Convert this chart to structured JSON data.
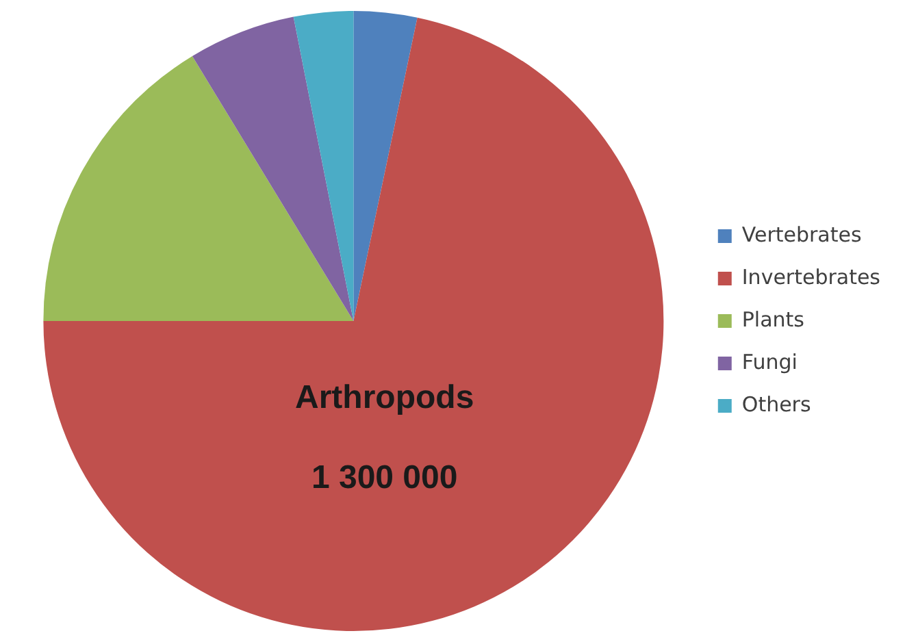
{
  "chart_data": {
    "type": "pie",
    "categories": [
      "Vertebrates",
      "Invertebrates",
      "Plants",
      "Fungi",
      "Others"
    ],
    "values": [
      3.3,
      71.7,
      16.3,
      5.6,
      3.1
    ],
    "colors": [
      "#4f81bd",
      "#c0504d",
      "#9bbb59",
      "#8064a2",
      "#4bacc6"
    ],
    "annotations": [
      "Arthropods",
      "1 300 000"
    ],
    "legend": "right"
  }
}
